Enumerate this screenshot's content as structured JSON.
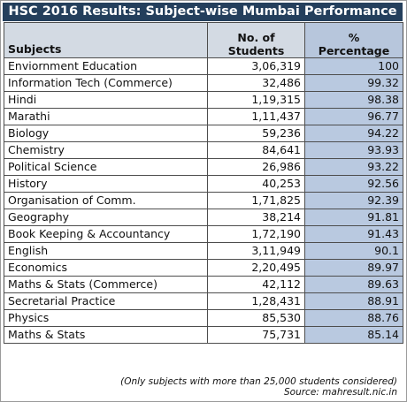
{
  "title": "HSC 2016 Results: Subject-wise Mumbai Performance",
  "headers": {
    "subject": "Subjects",
    "students_line1": "No. of",
    "students_line2": "Students",
    "percent_line1": "%",
    "percent_line2": "Percentage"
  },
  "chart_data": {
    "type": "table",
    "title": "HSC 2016 Results: Subject-wise Mumbai Performance",
    "columns": [
      "Subjects",
      "No. of Students",
      "% Percentage"
    ],
    "rows": [
      {
        "subject": "Enviornment Education",
        "students": "3,06,319",
        "percentage": "100"
      },
      {
        "subject": "Information Tech (Commerce)",
        "students": "32,486",
        "percentage": "99.32"
      },
      {
        "subject": "Hindi",
        "students": "1,19,315",
        "percentage": "98.38"
      },
      {
        "subject": "Marathi",
        "students": "1,11,437",
        "percentage": "96.77"
      },
      {
        "subject": "Biology",
        "students": "59,236",
        "percentage": "94.22"
      },
      {
        "subject": "Chemistry",
        "students": "84,641",
        "percentage": "93.93"
      },
      {
        "subject": "Political Science",
        "students": "26,986",
        "percentage": "93.22"
      },
      {
        "subject": "History",
        "students": "40,253",
        "percentage": "92.56"
      },
      {
        "subject": "Organisation of Comm.",
        "students": "1,71,825",
        "percentage": "92.39"
      },
      {
        "subject": "Geography",
        "students": "38,214",
        "percentage": "91.81"
      },
      {
        "subject": "Book Keeping & Accountancy",
        "students": "1,72,190",
        "percentage": "91.43"
      },
      {
        "subject": "English",
        "students": "3,11,949",
        "percentage": "90.1"
      },
      {
        "subject": "Economics",
        "students": "2,20,495",
        "percentage": "89.97"
      },
      {
        "subject": "Maths & Stats (Commerce)",
        "students": "42,112",
        "percentage": "89.63"
      },
      {
        "subject": "Secretarial Practice",
        "students": "1,28,431",
        "percentage": "88.91"
      },
      {
        "subject": "Physics",
        "students": "85,530",
        "percentage": "88.76"
      },
      {
        "subject": "Maths & Stats",
        "students": "75,731",
        "percentage": "85.14"
      }
    ]
  },
  "footnote": {
    "note": "(Only subjects with more than 25,000 students considered)",
    "source": "Source: mahresult.nic.in"
  },
  "colors": {
    "title_bar": "#243f5c",
    "header_bg": "#d3dae3",
    "percent_header_bg": "#b7c6dc",
    "percent_column_bg": "#b9c9e0"
  }
}
